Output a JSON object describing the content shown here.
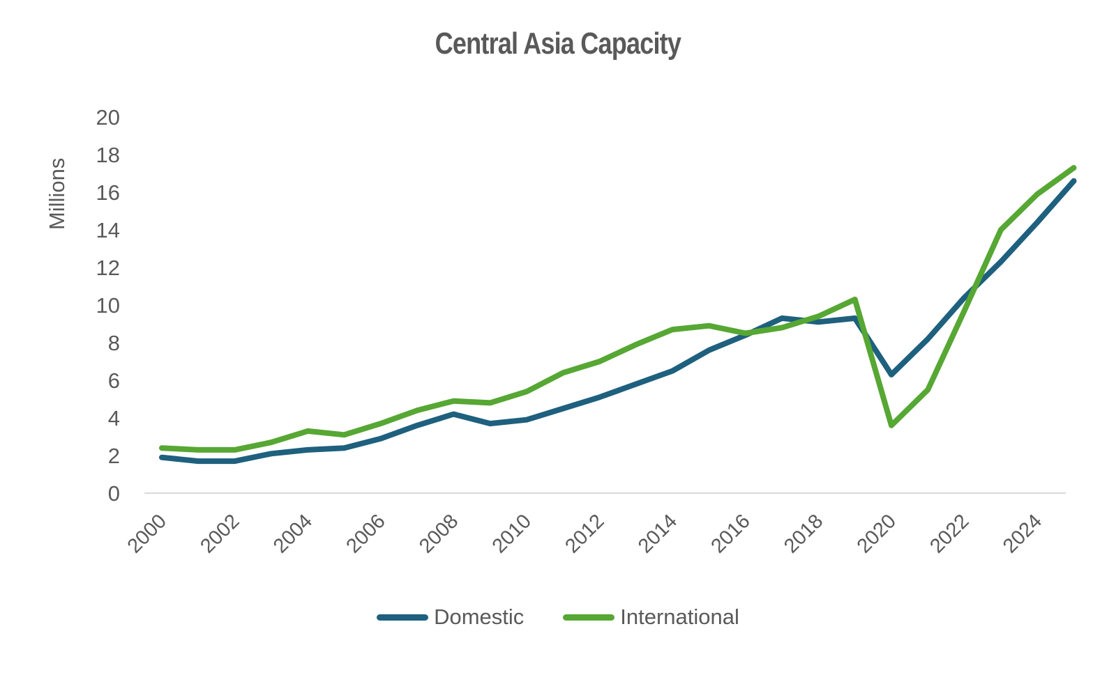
{
  "title": "Central Asia Capacity",
  "colors": {
    "text": "#595959",
    "axis_line": "#d9d9d9",
    "background": "#ffffff",
    "domestic": "#1e607e",
    "international": "#56a733"
  },
  "chart_data": {
    "type": "line",
    "title": "Central Asia Capacity",
    "xlabel": "",
    "ylabel": "Millions",
    "ylim": [
      0,
      20
    ],
    "ytick_step": 2,
    "ytick_labels": [
      "0",
      "2",
      "4",
      "6",
      "8",
      "10",
      "12",
      "14",
      "16",
      "18",
      "20"
    ],
    "xtick_labels": [
      "2000",
      "2002",
      "2004",
      "2006",
      "2008",
      "2010",
      "2012",
      "2014",
      "2016",
      "2018",
      "2020",
      "2022",
      "2024"
    ],
    "grid": "baseline-only",
    "legend_position": "bottom",
    "x": [
      2000,
      2001,
      2002,
      2003,
      2004,
      2005,
      2006,
      2007,
      2008,
      2009,
      2010,
      2011,
      2012,
      2013,
      2014,
      2015,
      2016,
      2017,
      2018,
      2019,
      2020,
      2021,
      2022,
      2023,
      2024,
      2025
    ],
    "series": [
      {
        "name": "Domestic",
        "color": "#1e607e",
        "values": [
          1.9,
          1.7,
          1.7,
          2.1,
          2.3,
          2.4,
          2.9,
          3.6,
          4.2,
          3.7,
          3.9,
          4.5,
          5.1,
          5.8,
          6.5,
          7.6,
          8.4,
          9.3,
          9.1,
          9.3,
          6.3,
          8.2,
          10.4,
          12.3,
          14.4,
          16.6
        ]
      },
      {
        "name": "International",
        "color": "#56a733",
        "values": [
          2.4,
          2.3,
          2.3,
          2.7,
          3.3,
          3.1,
          3.7,
          4.4,
          4.9,
          4.8,
          5.4,
          6.4,
          7.0,
          7.9,
          8.7,
          8.9,
          8.5,
          8.8,
          9.4,
          10.3,
          3.6,
          5.5,
          9.7,
          14.0,
          15.9,
          17.3
        ]
      }
    ]
  }
}
